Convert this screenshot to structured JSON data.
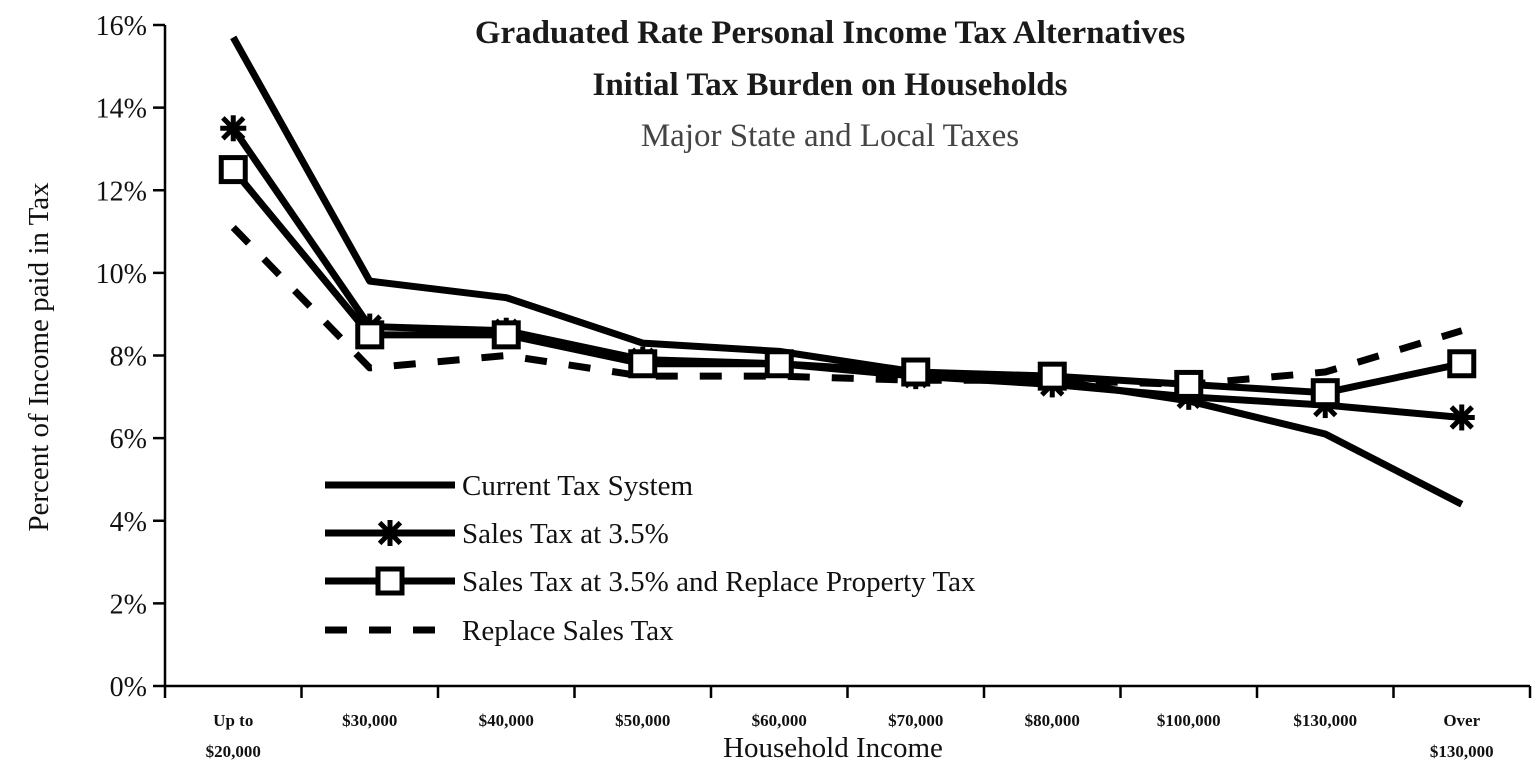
{
  "chart_data": {
    "type": "line",
    "title": "Graduated Rate Personal Income Tax Alternatives",
    "subtitle_line1": "Initial Tax Burden on Households",
    "subtitle_line2": "Major State and Local Taxes",
    "xlabel": "Household Income",
    "ylabel": "Percent of Income paid in Tax",
    "ylim": [
      0,
      16
    ],
    "yticks": [
      0,
      2,
      4,
      6,
      8,
      10,
      12,
      14,
      16
    ],
    "ytick_labels": [
      "0%",
      "2%",
      "4%",
      "6%",
      "8%",
      "10%",
      "12%",
      "14%",
      "16%"
    ],
    "categories": [
      [
        "Up to",
        "$20,000"
      ],
      [
        "$30,000"
      ],
      [
        "$40,000"
      ],
      [
        "$50,000"
      ],
      [
        "$60,000"
      ],
      [
        "$70,000"
      ],
      [
        "$80,000"
      ],
      [
        "$100,000"
      ],
      [
        "$130,000"
      ],
      [
        "Over",
        "$130,000"
      ]
    ],
    "grid": false,
    "legend_position": "lower-left",
    "series": [
      {
        "name": "Current Tax System",
        "style": "solid",
        "marker": "none",
        "color": "#000000",
        "values": [
          15.7,
          9.8,
          9.4,
          8.3,
          8.1,
          7.6,
          7.4,
          6.9,
          6.1,
          4.4
        ]
      },
      {
        "name": "Sales Tax at 3.5%",
        "style": "solid",
        "marker": "asterisk",
        "color": "#000000",
        "values": [
          13.5,
          8.7,
          8.6,
          7.9,
          7.8,
          7.5,
          7.3,
          7.0,
          6.8,
          6.5
        ]
      },
      {
        "name": "Sales Tax at 3.5% and Replace Property Tax",
        "style": "solid",
        "marker": "square",
        "color": "#000000",
        "values": [
          12.5,
          8.5,
          8.5,
          7.8,
          7.8,
          7.6,
          7.5,
          7.3,
          7.1,
          7.8
        ]
      },
      {
        "name": "Replace Sales Tax",
        "style": "dashed",
        "marker": "none",
        "color": "#000000",
        "values": [
          11.1,
          7.7,
          8.0,
          7.5,
          7.5,
          7.4,
          7.4,
          7.3,
          7.6,
          8.6
        ]
      }
    ]
  }
}
